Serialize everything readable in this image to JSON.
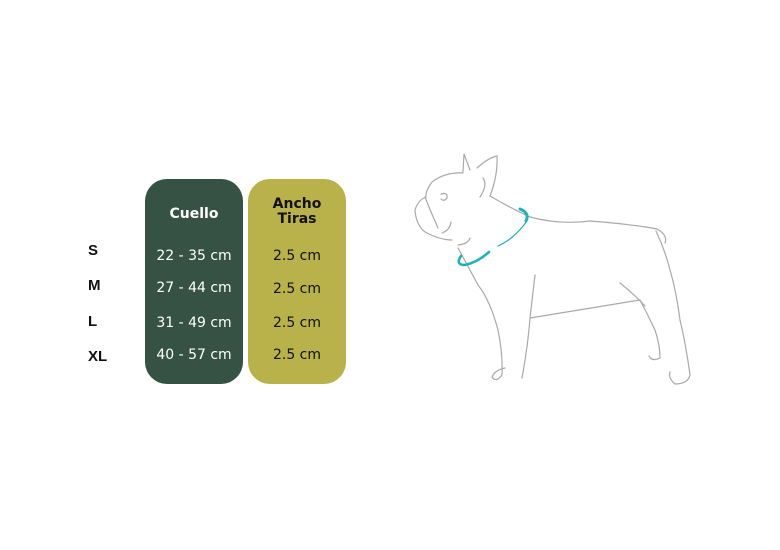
{
  "sizes": [
    "S",
    "M",
    "L",
    "XL"
  ],
  "columns": {
    "neck": {
      "header": "Cuello",
      "values": [
        "22 - 35 cm",
        "27 - 44 cm",
        "31 - 49 cm",
        "40 - 57 cm"
      ],
      "color": "#365244"
    },
    "strap": {
      "header_line1": "Ancho",
      "header_line2": "Tiras",
      "values": [
        "2.5 cm",
        "2.5 cm",
        "2.5 cm",
        "2.5 cm"
      ],
      "color": "#b9b14a"
    }
  },
  "illustration": {
    "subject": "dog-outline",
    "collar_color": "#1fb2ba",
    "line_color": "#a9a9a9"
  }
}
